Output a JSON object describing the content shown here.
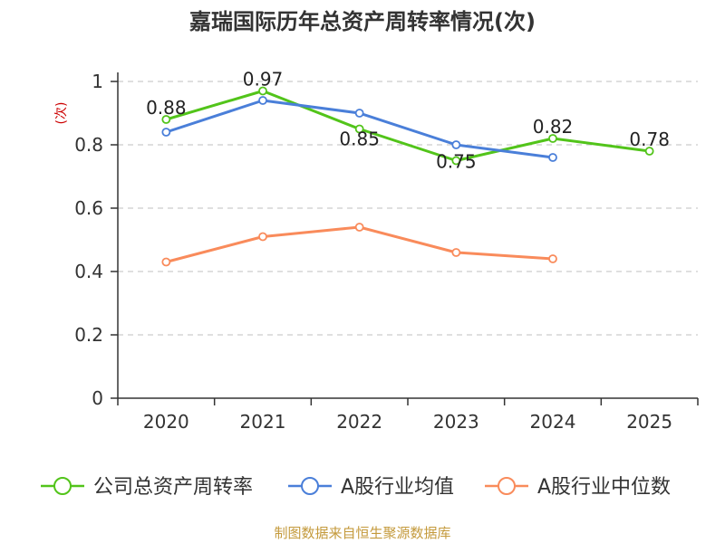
{
  "chart_data": {
    "type": "line",
    "title": "嘉瑞国际历年总资产周转率情况(次)",
    "ylabel": "(次)",
    "xlabel": "",
    "categories": [
      "2020",
      "2021",
      "2022",
      "2023",
      "2024",
      "2025"
    ],
    "ylim": [
      0,
      1
    ],
    "yticks": [
      0,
      0.2,
      0.4,
      0.6,
      0.8,
      1
    ],
    "ytick_labels": [
      "0",
      "0.2",
      "0.4",
      "0.6",
      "0.8",
      "1"
    ],
    "grid": true,
    "legend_position": "bottom",
    "series": [
      {
        "name": "公司总资产周转率",
        "color": "#52c41a",
        "values": [
          0.88,
          0.97,
          0.85,
          0.75,
          0.82,
          0.78
        ],
        "labels": [
          "0.88",
          "0.97",
          "0.85",
          "0.75",
          "0.82",
          "0.78"
        ]
      },
      {
        "name": "A股行业均值",
        "color": "#4a7fd9",
        "values": [
          0.84,
          0.94,
          0.9,
          0.8,
          0.76,
          null
        ]
      },
      {
        "name": "A股行业中位数",
        "color": "#f98b5b",
        "values": [
          0.43,
          0.51,
          0.54,
          0.46,
          0.44,
          null
        ]
      }
    ]
  },
  "source": {
    "text": "制图数据来自恒生聚源数据库",
    "color": "#c49a3c"
  }
}
